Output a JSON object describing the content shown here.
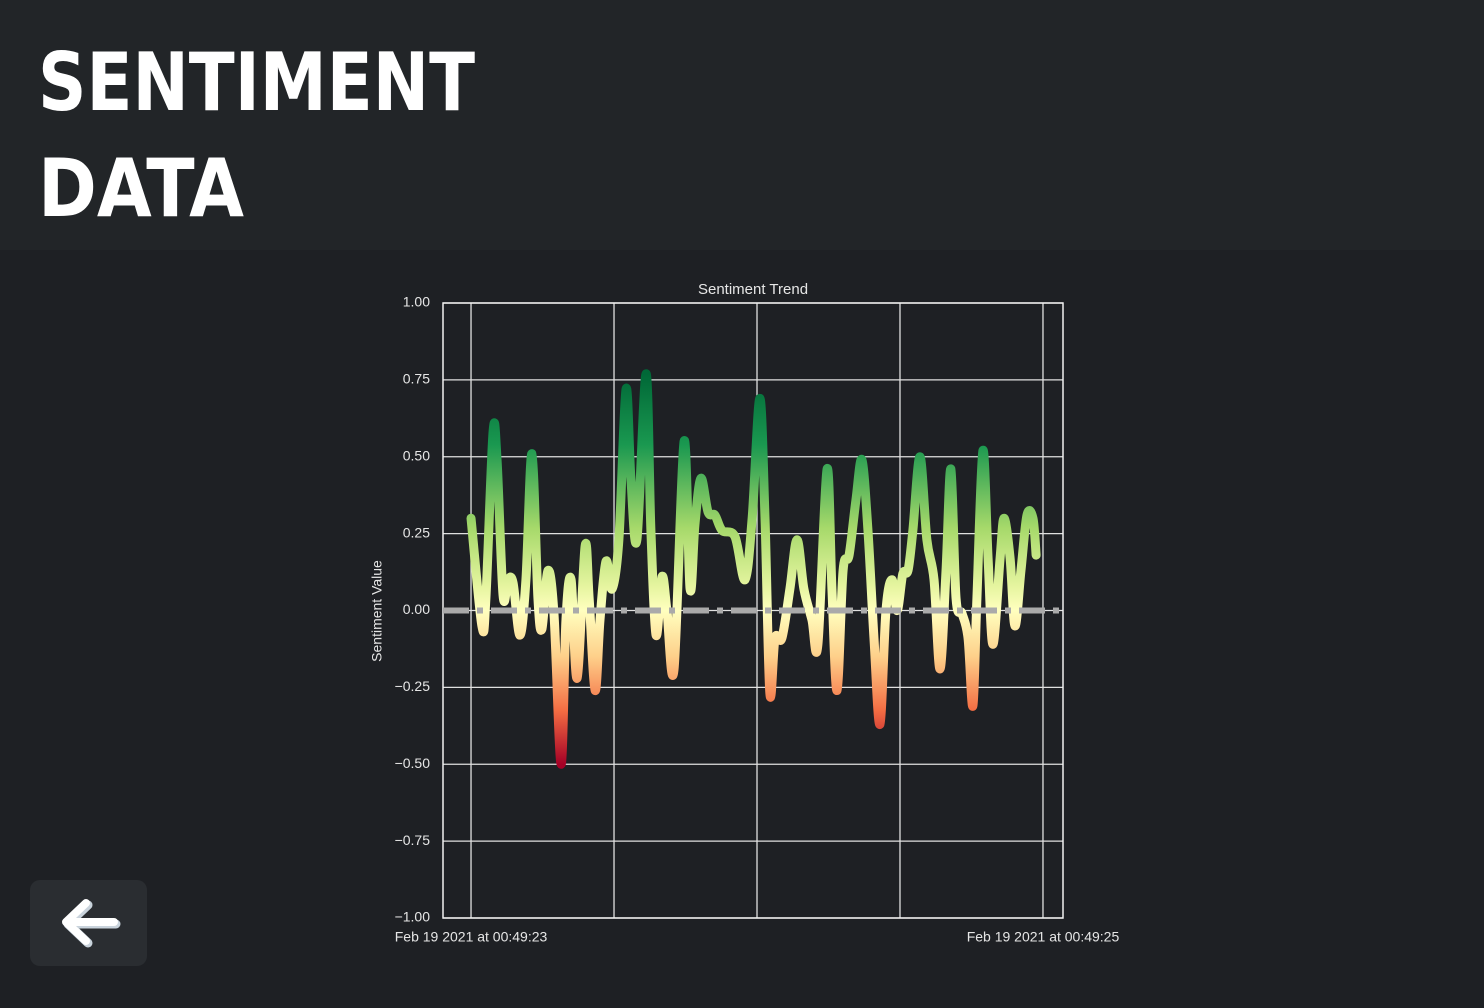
{
  "header": {
    "title_lines": [
      "SENTIMENT",
      "DATA"
    ]
  },
  "chart_data": {
    "type": "line",
    "title": "Sentiment Trend",
    "y_label": "Sentiment Value",
    "xlim": [
      -0.098,
      2.07
    ],
    "xticks": [
      {
        "value": 0,
        "label": "Feb 19 2021 at 00:49:23"
      },
      {
        "value": 0.5,
        "label": null
      },
      {
        "value": 1,
        "label": null
      },
      {
        "value": 1.5,
        "label": null
      },
      {
        "value": 2,
        "label": "Feb 19 2021 at 00:49:25"
      }
    ],
    "ylim": [
      -1,
      1
    ],
    "yticks": [
      {
        "value": -1,
        "label": "−1.00"
      },
      {
        "value": -0.75,
        "label": "−0.75"
      },
      {
        "value": -0.5,
        "label": "−0.50"
      },
      {
        "value": -0.25,
        "label": "−0.25"
      },
      {
        "value": 0,
        "label": "0.00"
      },
      {
        "value": 0.25,
        "label": "0.25"
      },
      {
        "value": 0.5,
        "label": "0.50"
      },
      {
        "value": 0.75,
        "label": "0.75"
      },
      {
        "value": 1,
        "label": "1.00"
      }
    ],
    "grid": true,
    "colormap": "RdYlGn",
    "reference_line": {
      "value": 0,
      "color": "#aaaaaa"
    },
    "series": [
      {
        "name": "Sentiment",
        "x": [
          0,
          0.038,
          0.052,
          0.077,
          0.091,
          0.112,
          0.129,
          0.147,
          0.171,
          0.192,
          0.213,
          0.234,
          0.248,
          0.269,
          0.29,
          0.315,
          0.332,
          0.35,
          0.371,
          0.399,
          0.413,
          0.434,
          0.451,
          0.472,
          0.493,
          0.517,
          0.542,
          0.559,
          0.58,
          0.612,
          0.629,
          0.647,
          0.668,
          0.685,
          0.71,
          0.745,
          0.766,
          0.783,
          0.804,
          0.829,
          0.853,
          0.878,
          0.923,
          0.958,
          0.983,
          1.01,
          1.028,
          1.045,
          1.063,
          1.087,
          1.115,
          1.14,
          1.164,
          1.192,
          1.213,
          1.245,
          1.262,
          1.28,
          1.301,
          1.322,
          1.346,
          1.367,
          1.388,
          1.409,
          1.43,
          1.451,
          1.472,
          1.49,
          1.51,
          1.528,
          1.545,
          1.57,
          1.594,
          1.619,
          1.64,
          1.661,
          1.678,
          1.696,
          1.717,
          1.738,
          1.755,
          1.769,
          1.79,
          1.808,
          1.825,
          1.85,
          1.864,
          1.885,
          1.902,
          1.923,
          1.944,
          1.965,
          1.976
        ],
        "values": [
          0.3,
          -0.05,
          0.04,
          0.58,
          0.49,
          0.05,
          0.1,
          0.09,
          -0.08,
          0.1,
          0.51,
          0.04,
          -0.06,
          0.13,
          -0.01,
          -0.5,
          -0.03,
          0.1,
          -0.22,
          0.21,
          0.04,
          -0.26,
          -0.03,
          0.16,
          0.07,
          0.23,
          0.72,
          0.43,
          0.23,
          0.77,
          0.26,
          -0.08,
          0.11,
          0.0,
          -0.19,
          0.55,
          0.07,
          0.28,
          0.43,
          0.32,
          0.31,
          0.26,
          0.24,
          0.1,
          0.3,
          0.69,
          0.3,
          -0.27,
          -0.09,
          -0.09,
          0.07,
          0.23,
          0.07,
          -0.03,
          -0.11,
          0.46,
          0.07,
          -0.26,
          0.13,
          0.18,
          0.36,
          0.49,
          0.26,
          -0.09,
          -0.37,
          0.0,
          0.1,
          0.0,
          0.12,
          0.13,
          0.26,
          0.5,
          0.23,
          0.1,
          -0.19,
          0.13,
          0.46,
          0.04,
          -0.01,
          -0.09,
          -0.31,
          0.04,
          0.52,
          0.17,
          -0.11,
          0.17,
          0.3,
          0.17,
          -0.05,
          0.13,
          0.31,
          0.3,
          0.18
        ]
      }
    ]
  }
}
